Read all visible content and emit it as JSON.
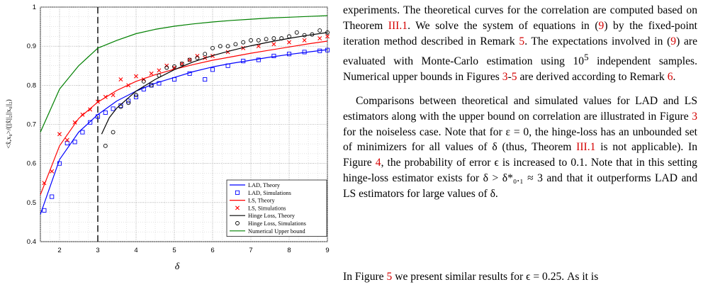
{
  "figure": {
    "ylabel": "<x̂,x₀>/(||x̂||₂||x₀||₂)",
    "xlabel": "δ",
    "x_ticks": [
      "2",
      "3",
      "4",
      "5",
      "6",
      "7",
      "8",
      "9"
    ],
    "y_ticks": [
      "0.4",
      "0.5",
      "0.6",
      "0.7",
      "0.8",
      "0.9",
      "1"
    ],
    "legend": [
      "LAD, Theory",
      "LAD, Simulations",
      "LS, Theory",
      "LS, Simulations",
      "Hinge Loss, Theory",
      "Hinge Loss, Simulations",
      "Numerical Upper bound"
    ],
    "colors": {
      "lad": "#0000ff",
      "ls": "#ff0000",
      "hinge": "#000000",
      "upper": "#008000",
      "threshold": "#000000"
    }
  },
  "chart_data": {
    "type": "line",
    "xlabel": "δ",
    "ylabel": "<x̂,x₀>/(||x̂||₂||x₀||₂)",
    "xlim": [
      1.5,
      9
    ],
    "ylim": [
      0.4,
      1
    ],
    "grid": true,
    "legend_position": "bottom-right",
    "vertical_line_x": 3,
    "series": [
      {
        "name": "LAD, Theory",
        "style": "line",
        "x": [
          1.5,
          2,
          2.5,
          3,
          3.5,
          4,
          4.5,
          5,
          5.5,
          6,
          6.5,
          7,
          7.5,
          8,
          8.5,
          9
        ],
        "y": [
          0.47,
          0.61,
          0.68,
          0.725,
          0.76,
          0.785,
          0.805,
          0.82,
          0.835,
          0.847,
          0.856,
          0.864,
          0.872,
          0.879,
          0.885,
          0.891
        ]
      },
      {
        "name": "LAD, Simulations",
        "style": "squares",
        "x": [
          1.6,
          1.8,
          2.0,
          2.2,
          2.4,
          2.6,
          2.8,
          3.0,
          3.2,
          3.4,
          3.6,
          3.8,
          4.0,
          4.2,
          4.4,
          4.6,
          5.0,
          5.4,
          5.8,
          6.0,
          6.4,
          6.8,
          7.2,
          7.6,
          8.0,
          8.4,
          8.8,
          9.0
        ],
        "y": [
          0.48,
          0.515,
          0.6,
          0.652,
          0.655,
          0.68,
          0.705,
          0.72,
          0.73,
          0.74,
          0.748,
          0.76,
          0.77,
          0.79,
          0.8,
          0.805,
          0.815,
          0.83,
          0.815,
          0.84,
          0.85,
          0.862,
          0.865,
          0.875,
          0.88,
          0.885,
          0.888,
          0.89
        ]
      },
      {
        "name": "LS, Theory",
        "style": "line",
        "x": [
          1.5,
          2,
          2.5,
          3,
          3.5,
          4,
          4.5,
          5,
          5.5,
          6,
          6.5,
          7,
          7.5,
          8,
          8.5,
          9
        ],
        "y": [
          0.52,
          0.645,
          0.715,
          0.757,
          0.787,
          0.81,
          0.827,
          0.841,
          0.853,
          0.864,
          0.873,
          0.882,
          0.89,
          0.898,
          0.906,
          0.913
        ]
      },
      {
        "name": "LS, Simulations",
        "style": "crosses",
        "x": [
          1.6,
          1.8,
          2.0,
          2.2,
          2.4,
          2.6,
          2.8,
          3.0,
          3.2,
          3.4,
          3.6,
          3.8,
          4.0,
          4.2,
          4.4,
          4.6,
          4.8,
          5.0,
          5.2,
          5.4,
          5.6,
          5.8,
          6.0,
          6.4,
          6.8,
          7.2,
          7.6,
          8.0,
          8.4,
          8.8,
          9.0
        ],
        "y": [
          0.55,
          0.58,
          0.675,
          0.66,
          0.705,
          0.725,
          0.738,
          0.758,
          0.77,
          0.775,
          0.815,
          0.8,
          0.823,
          0.815,
          0.83,
          0.838,
          0.85,
          0.845,
          0.855,
          0.865,
          0.875,
          0.87,
          0.875,
          0.885,
          0.895,
          0.9,
          0.905,
          0.91,
          0.915,
          0.92,
          0.925
        ]
      },
      {
        "name": "Hinge Loss, Theory",
        "style": "line",
        "x": [
          3.1,
          3.3,
          3.5,
          4,
          4.5,
          5,
          5.5,
          6,
          6.5,
          7,
          7.5,
          8,
          8.5,
          9
        ],
        "y": [
          0.675,
          0.717,
          0.742,
          0.785,
          0.815,
          0.84,
          0.86,
          0.876,
          0.889,
          0.901,
          0.911,
          0.92,
          0.928,
          0.935
        ]
      },
      {
        "name": "Hinge Loss, Simulations",
        "style": "circles",
        "x": [
          3.2,
          3.4,
          3.6,
          3.8,
          4.0,
          4.2,
          4.4,
          4.6,
          4.8,
          5.0,
          5.2,
          5.4,
          5.6,
          5.8,
          6.0,
          6.2,
          6.4,
          6.6,
          6.8,
          7.0,
          7.2,
          7.4,
          7.6,
          7.8,
          8.0,
          8.2,
          8.4,
          8.6,
          8.8,
          9.0
        ],
        "y": [
          0.645,
          0.68,
          0.745,
          0.755,
          0.775,
          0.81,
          0.8,
          0.825,
          0.845,
          0.848,
          0.855,
          0.865,
          0.87,
          0.88,
          0.895,
          0.9,
          0.9,
          0.905,
          0.91,
          0.915,
          0.915,
          0.918,
          0.92,
          0.92,
          0.925,
          0.935,
          0.928,
          0.93,
          0.94,
          0.935
        ]
      },
      {
        "name": "Numerical Upper bound",
        "style": "line",
        "x": [
          1.5,
          2,
          2.5,
          3,
          3.5,
          4,
          4.5,
          5,
          5.5,
          6,
          6.5,
          7,
          7.5,
          8,
          8.5,
          9
        ],
        "y": [
          0.68,
          0.79,
          0.85,
          0.895,
          0.915,
          0.932,
          0.943,
          0.951,
          0.957,
          0.962,
          0.966,
          0.969,
          0.972,
          0.974,
          0.976,
          0.978
        ]
      }
    ]
  },
  "text": {
    "p1_a": "experiments. The theoretical curves for the correlation are computed based on Theorem ",
    "ref_thm": "III.1",
    "p1_b": ". We solve the system of equations in (",
    "ref_eq1": "9",
    "p1_c": ") by the fixed-point iteration method described in Remark ",
    "ref_rem5": "5",
    "p1_d": ". The expectations involved in (",
    "ref_eq2": "9",
    "p1_e": ") are evaluated with Monte-Carlo estimation using 10",
    "sup5": "5",
    "p1_f": " independent samples. Numerical upper bounds in Figures ",
    "ref_f3": "3",
    "dash": "-",
    "ref_f5": "5",
    "p1_g": " are derived according to Remark ",
    "ref_rem6": "6",
    "p1_h": ".",
    "p2_a": "Comparisons between theoretical and simulated values for LAD and LS estimators along with the upper bound on correlation are illustrated in Figure ",
    "ref_f3b": "3",
    "p2_b": " for the noiseless case. Note that for ε = 0, the hinge-loss has an unbounded set of minimizers for all values of δ (thus, Theorem ",
    "ref_thm2": "III.1",
    "p2_c": " is not applicable). In Figure ",
    "ref_f4": "4",
    "p2_d": ", the probability of error ϵ is increased to 0.1. Note that in this setting hinge-loss estimator exists for δ > δ*₀.₁ ≈ 3 and that it outperforms LAD and LS estimators for large values of δ.",
    "p3_a": "In Figure ",
    "ref_f5b": "5",
    "p3_b": " we present similar results for ϵ = 0.25. As it is"
  }
}
